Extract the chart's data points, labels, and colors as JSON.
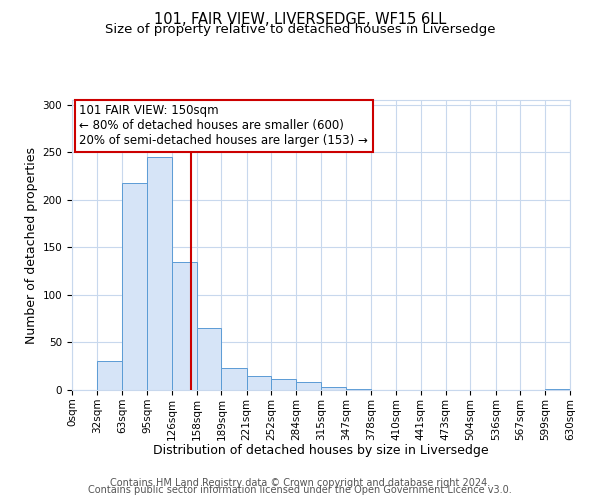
{
  "title": "101, FAIR VIEW, LIVERSEDGE, WF15 6LL",
  "subtitle": "Size of property relative to detached houses in Liversedge",
  "xlabel": "Distribution of detached houses by size in Liversedge",
  "ylabel": "Number of detached properties",
  "bin_edges": [
    0,
    32,
    63,
    95,
    126,
    158,
    189,
    221,
    252,
    284,
    315,
    347,
    378,
    410,
    441,
    473,
    504,
    536,
    567,
    599,
    630
  ],
  "bar_heights": [
    0,
    30,
    218,
    245,
    135,
    65,
    23,
    15,
    12,
    8,
    3,
    1,
    0,
    0,
    0,
    0,
    0,
    0,
    0,
    1
  ],
  "bar_face_color": "#d6e4f7",
  "bar_edge_color": "#5b9bd5",
  "vline_x": 150,
  "vline_color": "#cc0000",
  "annotation_title": "101 FAIR VIEW: 150sqm",
  "annotation_line1": "← 80% of detached houses are smaller (600)",
  "annotation_line2": "20% of semi-detached houses are larger (153) →",
  "annotation_box_color": "#cc0000",
  "ylim": [
    0,
    305
  ],
  "yticks": [
    0,
    50,
    100,
    150,
    200,
    250,
    300
  ],
  "tick_labels": [
    "0sqm",
    "32sqm",
    "63sqm",
    "95sqm",
    "126sqm",
    "158sqm",
    "189sqm",
    "221sqm",
    "252sqm",
    "284sqm",
    "315sqm",
    "347sqm",
    "378sqm",
    "410sqm",
    "441sqm",
    "473sqm",
    "504sqm",
    "536sqm",
    "567sqm",
    "599sqm",
    "630sqm"
  ],
  "footer1": "Contains HM Land Registry data © Crown copyright and database right 2024.",
  "footer2": "Contains public sector information licensed under the Open Government Licence v3.0.",
  "bg_color": "#ffffff",
  "grid_color": "#c8d8ed",
  "title_fontsize": 10.5,
  "subtitle_fontsize": 9.5,
  "axis_label_fontsize": 9,
  "tick_fontsize": 7.5,
  "annotation_fontsize": 8.5,
  "footer_fontsize": 7
}
